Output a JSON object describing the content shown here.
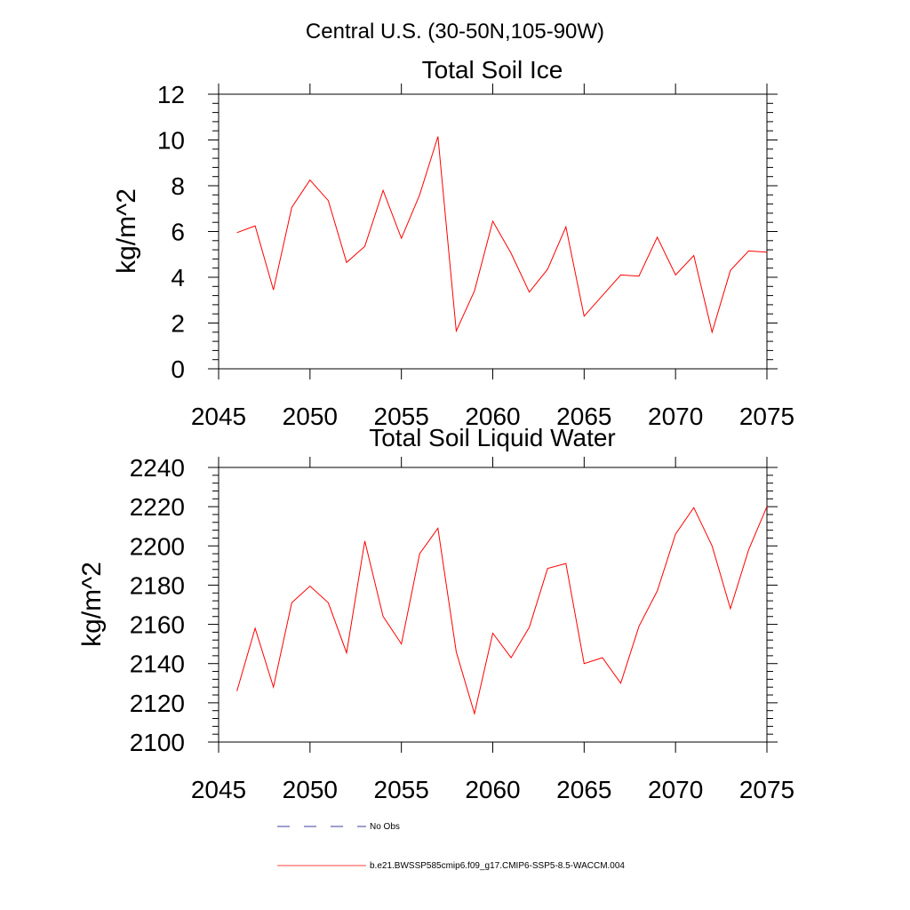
{
  "header": {
    "title": "Central U.S. (30-50N,105-90W)"
  },
  "chart_data": [
    {
      "type": "line",
      "title": "Total Soil Ice",
      "xlabel": "",
      "ylabel": "kg/m^2",
      "xlim": [
        2045,
        2075
      ],
      "ylim": [
        0,
        12
      ],
      "x_ticks": [
        2045,
        2050,
        2055,
        2060,
        2065,
        2070,
        2075
      ],
      "y_ticks": [
        0,
        2,
        4,
        6,
        8,
        10,
        12
      ],
      "series": [
        {
          "name": "b.e21.BWSSP585cmip6.f09_g17.CMIP6-SSP5-8.5-WACCM.004",
          "color": "#ff0000",
          "x": [
            2046,
            2047,
            2048,
            2049,
            2050,
            2051,
            2052,
            2053,
            2054,
            2055,
            2056,
            2057,
            2058,
            2059,
            2060,
            2061,
            2062,
            2063,
            2064,
            2065,
            2066,
            2067,
            2068,
            2069,
            2070,
            2071,
            2072,
            2073,
            2074,
            2075
          ],
          "values": [
            5.95,
            6.25,
            3.45,
            7.05,
            8.25,
            7.35,
            4.65,
            5.35,
            7.8,
            5.7,
            7.6,
            10.15,
            1.65,
            3.4,
            6.45,
            5.05,
            3.35,
            4.35,
            6.2,
            2.3,
            3.2,
            4.1,
            4.05,
            5.75,
            4.1,
            4.95,
            1.6,
            4.3,
            5.15,
            5.1
          ]
        }
      ]
    },
    {
      "type": "line",
      "title": "Total Soil Liquid Water",
      "xlabel": "",
      "ylabel": "kg/m^2",
      "xlim": [
        2045,
        2075
      ],
      "ylim": [
        2100,
        2240
      ],
      "x_ticks": [
        2045,
        2050,
        2055,
        2060,
        2065,
        2070,
        2075
      ],
      "y_ticks": [
        2100,
        2120,
        2140,
        2160,
        2180,
        2200,
        2220,
        2240
      ],
      "series": [
        {
          "name": "b.e21.BWSSP585cmip6.f09_g17.CMIP6-SSP5-8.5-WACCM.004",
          "color": "#ff0000",
          "x": [
            2046,
            2047,
            2048,
            2049,
            2050,
            2051,
            2052,
            2053,
            2054,
            2055,
            2056,
            2057,
            2058,
            2059,
            2060,
            2061,
            2062,
            2063,
            2064,
            2065,
            2066,
            2067,
            2068,
            2069,
            2070,
            2071,
            2072,
            2073,
            2074,
            2075
          ],
          "values": [
            2126,
            2158,
            2128,
            2171,
            2179.5,
            2171,
            2145.5,
            2202.5,
            2164,
            2150,
            2196,
            2209,
            2146,
            2114.5,
            2155.5,
            2143,
            2158.5,
            2188.5,
            2191,
            2140,
            2143,
            2130,
            2159,
            2177,
            2206,
            2219.5,
            2200,
            2168,
            2198,
            2220
          ]
        }
      ]
    }
  ],
  "legend": {
    "items": [
      {
        "label": "No Obs",
        "color": "#000080",
        "style": "dashed"
      },
      {
        "label": "b.e21.BWSSP585cmip6.f09_g17.CMIP6-SSP5-8.5-WACCM.004",
        "color": "#ff0000",
        "style": "solid"
      }
    ]
  }
}
